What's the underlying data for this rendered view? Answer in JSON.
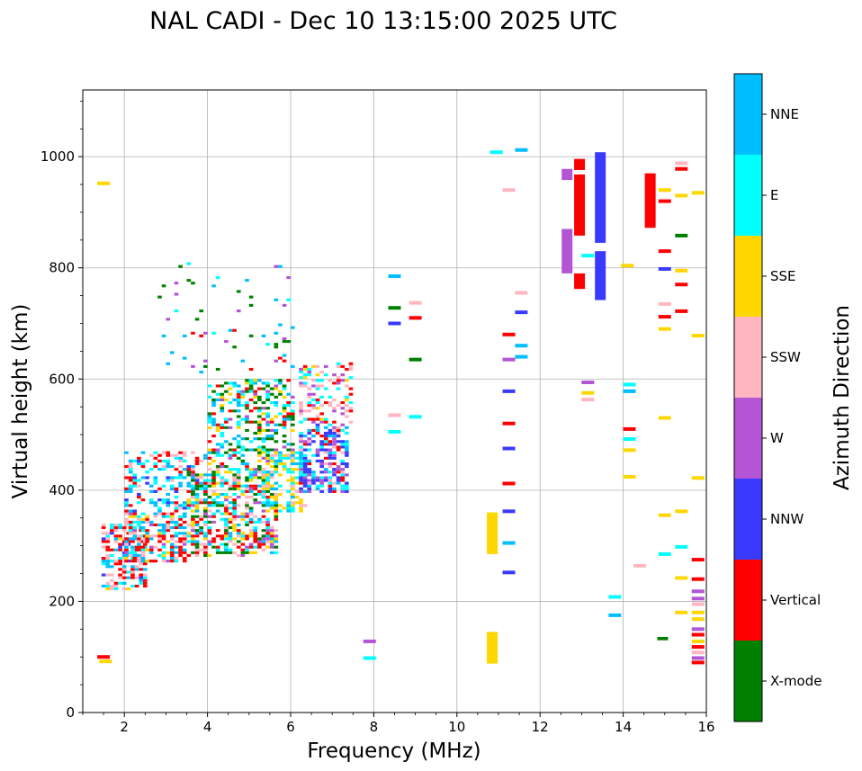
{
  "chart_data": {
    "type": "scatter",
    "title": "NAL CADI - Dec 10 13:15:00 2025 UTC",
    "xlabel": "Frequency (MHz)",
    "ylabel": "Virtual height (km)",
    "xlim": [
      1,
      16
    ],
    "ylim": [
      0,
      1120
    ],
    "xticks": [
      2,
      4,
      6,
      8,
      10,
      12,
      14,
      16
    ],
    "yticks": [
      0,
      200,
      400,
      600,
      800,
      1000
    ],
    "grid": true,
    "colorbar": {
      "label": "Azimuth Direction",
      "categories": [
        {
          "name": "X-mode",
          "color": "#008000"
        },
        {
          "name": "Vertical",
          "color": "#ff0000"
        },
        {
          "name": "NNW",
          "color": "#3a3aff"
        },
        {
          "name": "W",
          "color": "#b355d4"
        },
        {
          "name": "SSW",
          "color": "#ffb6c1"
        },
        {
          "name": "SSE",
          "color": "#ffd700"
        },
        {
          "name": "E",
          "color": "#00ffff"
        },
        {
          "name": "NNE",
          "color": "#00bfff"
        }
      ]
    },
    "columns": [
      {
        "f": 10.85,
        "y0": 88,
        "y1": 145,
        "cat": "SSE"
      },
      {
        "f": 10.85,
        "y0": 285,
        "y1": 360,
        "cat": "SSE"
      },
      {
        "f": 12.65,
        "y0": 790,
        "y1": 870,
        "cat": "W"
      },
      {
        "f": 12.65,
        "y0": 958,
        "y1": 978,
        "cat": "W"
      },
      {
        "f": 12.95,
        "y0": 858,
        "y1": 968,
        "cat": "Vertical"
      },
      {
        "f": 12.95,
        "y0": 762,
        "y1": 790,
        "cat": "Vertical"
      },
      {
        "f": 12.95,
        "y0": 976,
        "y1": 996,
        "cat": "Vertical"
      },
      {
        "f": 13.45,
        "y0": 742,
        "y1": 830,
        "cat": "NNW"
      },
      {
        "f": 13.45,
        "y0": 845,
        "y1": 1008,
        "cat": "NNW"
      },
      {
        "f": 14.65,
        "y0": 872,
        "y1": 970,
        "cat": "Vertical"
      },
      {
        "f": 14.95,
        "y0": 130,
        "y1": 136,
        "cat": "X-mode"
      }
    ],
    "points": [
      {
        "f": 1.5,
        "h": 100,
        "cat": "Vertical"
      },
      {
        "f": 1.55,
        "h": 92,
        "cat": "SSE"
      },
      {
        "f": 1.5,
        "h": 952,
        "cat": "SSE"
      },
      {
        "f": 7.9,
        "h": 98,
        "cat": "E"
      },
      {
        "f": 7.9,
        "h": 128,
        "cat": "W"
      },
      {
        "f": 8.5,
        "h": 785,
        "cat": "NNE"
      },
      {
        "f": 8.5,
        "h": 728,
        "cat": "X-mode"
      },
      {
        "f": 8.5,
        "h": 700,
        "cat": "NNW"
      },
      {
        "f": 8.5,
        "h": 535,
        "cat": "SSW"
      },
      {
        "f": 8.5,
        "h": 505,
        "cat": "E"
      },
      {
        "f": 9.0,
        "h": 737,
        "cat": "SSW"
      },
      {
        "f": 9.0,
        "h": 710,
        "cat": "Vertical"
      },
      {
        "f": 9.0,
        "h": 635,
        "cat": "X-mode"
      },
      {
        "f": 9.0,
        "h": 532,
        "cat": "E"
      },
      {
        "f": 10.95,
        "h": 1008,
        "cat": "E"
      },
      {
        "f": 11.25,
        "h": 940,
        "cat": "SSW"
      },
      {
        "f": 11.25,
        "h": 680,
        "cat": "Vertical"
      },
      {
        "f": 11.25,
        "h": 635,
        "cat": "W"
      },
      {
        "f": 11.25,
        "h": 578,
        "cat": "NNW"
      },
      {
        "f": 11.25,
        "h": 520,
        "cat": "Vertical"
      },
      {
        "f": 11.25,
        "h": 475,
        "cat": "NNW"
      },
      {
        "f": 11.25,
        "h": 412,
        "cat": "Vertical"
      },
      {
        "f": 11.25,
        "h": 362,
        "cat": "NNW"
      },
      {
        "f": 11.25,
        "h": 305,
        "cat": "NNE"
      },
      {
        "f": 11.25,
        "h": 252,
        "cat": "NNW"
      },
      {
        "f": 11.55,
        "h": 1012,
        "cat": "NNE"
      },
      {
        "f": 11.55,
        "h": 755,
        "cat": "SSW"
      },
      {
        "f": 11.55,
        "h": 720,
        "cat": "NNW"
      },
      {
        "f": 11.55,
        "h": 660,
        "cat": "NNE"
      },
      {
        "f": 11.55,
        "h": 640,
        "cat": "NNE"
      },
      {
        "f": 13.15,
        "h": 822,
        "cat": "E"
      },
      {
        "f": 13.15,
        "h": 594,
        "cat": "W"
      },
      {
        "f": 13.15,
        "h": 575,
        "cat": "SSE"
      },
      {
        "f": 13.15,
        "h": 563,
        "cat": "SSW"
      },
      {
        "f": 13.8,
        "h": 208,
        "cat": "E"
      },
      {
        "f": 13.8,
        "h": 175,
        "cat": "NNE"
      },
      {
        "f": 14.1,
        "h": 804,
        "cat": "SSE"
      },
      {
        "f": 14.15,
        "h": 590,
        "cat": "E"
      },
      {
        "f": 14.15,
        "h": 578,
        "cat": "NNE"
      },
      {
        "f": 14.15,
        "h": 510,
        "cat": "Vertical"
      },
      {
        "f": 14.15,
        "h": 492,
        "cat": "E"
      },
      {
        "f": 14.15,
        "h": 472,
        "cat": "SSE"
      },
      {
        "f": 14.15,
        "h": 424,
        "cat": "SSE"
      },
      {
        "f": 14.4,
        "h": 264,
        "cat": "SSW"
      },
      {
        "f": 15.0,
        "h": 940,
        "cat": "SSE"
      },
      {
        "f": 15.0,
        "h": 920,
        "cat": "Vertical"
      },
      {
        "f": 15.0,
        "h": 830,
        "cat": "Vertical"
      },
      {
        "f": 15.0,
        "h": 798,
        "cat": "NNW"
      },
      {
        "f": 15.0,
        "h": 735,
        "cat": "SSW"
      },
      {
        "f": 15.0,
        "h": 712,
        "cat": "Vertical"
      },
      {
        "f": 15.0,
        "h": 690,
        "cat": "SSE"
      },
      {
        "f": 15.0,
        "h": 530,
        "cat": "SSE"
      },
      {
        "f": 15.0,
        "h": 355,
        "cat": "SSE"
      },
      {
        "f": 15.0,
        "h": 285,
        "cat": "E"
      },
      {
        "f": 15.4,
        "h": 988,
        "cat": "SSW"
      },
      {
        "f": 15.4,
        "h": 978,
        "cat": "Vertical"
      },
      {
        "f": 15.4,
        "h": 930,
        "cat": "SSE"
      },
      {
        "f": 15.4,
        "h": 858,
        "cat": "X-mode"
      },
      {
        "f": 15.4,
        "h": 795,
        "cat": "SSE"
      },
      {
        "f": 15.4,
        "h": 770,
        "cat": "Vertical"
      },
      {
        "f": 15.4,
        "h": 722,
        "cat": "Vertical"
      },
      {
        "f": 15.4,
        "h": 362,
        "cat": "SSE"
      },
      {
        "f": 15.4,
        "h": 298,
        "cat": "E"
      },
      {
        "f": 15.4,
        "h": 242,
        "cat": "SSE"
      },
      {
        "f": 15.4,
        "h": 180,
        "cat": "SSE"
      },
      {
        "f": 15.8,
        "h": 935,
        "cat": "SSE"
      },
      {
        "f": 15.8,
        "h": 678,
        "cat": "SSE"
      },
      {
        "f": 15.8,
        "h": 422,
        "cat": "SSE"
      },
      {
        "f": 15.8,
        "h": 275,
        "cat": "Vertical"
      },
      {
        "f": 15.8,
        "h": 240,
        "cat": "Vertical"
      },
      {
        "f": 15.8,
        "h": 218,
        "cat": "W"
      },
      {
        "f": 15.8,
        "h": 205,
        "cat": "W"
      },
      {
        "f": 15.8,
        "h": 195,
        "cat": "SSW"
      },
      {
        "f": 15.8,
        "h": 180,
        "cat": "SSE"
      },
      {
        "f": 15.8,
        "h": 168,
        "cat": "SSE"
      },
      {
        "f": 15.8,
        "h": 150,
        "cat": "W"
      },
      {
        "f": 15.8,
        "h": 140,
        "cat": "Vertical"
      },
      {
        "f": 15.8,
        "h": 128,
        "cat": "SSE"
      },
      {
        "f": 15.8,
        "h": 118,
        "cat": "Vertical"
      },
      {
        "f": 15.8,
        "h": 108,
        "cat": "SSW"
      },
      {
        "f": 15.8,
        "h": 98,
        "cat": "W"
      },
      {
        "f": 15.8,
        "h": 90,
        "cat": "Vertical"
      }
    ],
    "trace_regions": [
      {
        "f": [
          1.45,
          2.5
        ],
        "h": [
          220,
          340
        ],
        "density": 0.55,
        "weights": {
          "Vertical": 3,
          "SSW": 2,
          "NNE": 1.5,
          "E": 1,
          "NNW": 0.7,
          "SSE": 0.5
        }
      },
      {
        "f": [
          2.0,
          3.5
        ],
        "h": [
          270,
          360
        ],
        "density": 0.55,
        "weights": {
          "Vertical": 2.5,
          "SSW": 2,
          "NNE": 1.5,
          "E": 1.2,
          "SSE": 0.5,
          "W": 0.4
        }
      },
      {
        "f": [
          2.0,
          4.0
        ],
        "h": [
          360,
          470
        ],
        "density": 0.35,
        "weights": {
          "NNE": 2.5,
          "E": 2,
          "Vertical": 1.5,
          "SSW": 1,
          "NNW": 0.6
        }
      },
      {
        "f": [
          3.5,
          5.6
        ],
        "h": [
          280,
          440
        ],
        "density": 0.55,
        "weights": {
          "X-mode": 2,
          "Vertical": 1.8,
          "E": 1.6,
          "SSE": 1.5,
          "SSW": 1.3,
          "NNE": 1.2,
          "W": 0.5
        }
      },
      {
        "f": [
          4.0,
          6.0
        ],
        "h": [
          440,
          600
        ],
        "density": 0.4,
        "weights": {
          "X-mode": 2.5,
          "E": 1.6,
          "NNE": 1.6,
          "Vertical": 1.2,
          "SSE": 1,
          "W": 0.6
        }
      },
      {
        "f": [
          5.3,
          6.3
        ],
        "h": [
          360,
          470
        ],
        "density": 0.45,
        "weights": {
          "SSE": 3,
          "E": 1.5,
          "SSW": 1,
          "NNE": 1
        }
      },
      {
        "f": [
          6.2,
          7.3
        ],
        "h": [
          395,
          520
        ],
        "density": 0.6,
        "weights": {
          "NNW": 3,
          "E": 1.5,
          "NNE": 1.5,
          "W": 1.2,
          "Vertical": 1,
          "SSW": 1
        }
      },
      {
        "f": [
          6.2,
          7.4
        ],
        "h": [
          520,
          630
        ],
        "density": 0.35,
        "weights": {
          "SSW": 2,
          "E": 1.5,
          "W": 1.2,
          "Vertical": 1,
          "SSE": 0.8
        }
      },
      {
        "f": [
          2.8,
          6.0
        ],
        "h": [
          600,
          810
        ],
        "density": 0.035,
        "weights": {
          "NNE": 2,
          "X-mode": 2,
          "E": 1,
          "Vertical": 0.8,
          "W": 0.8
        }
      }
    ]
  }
}
